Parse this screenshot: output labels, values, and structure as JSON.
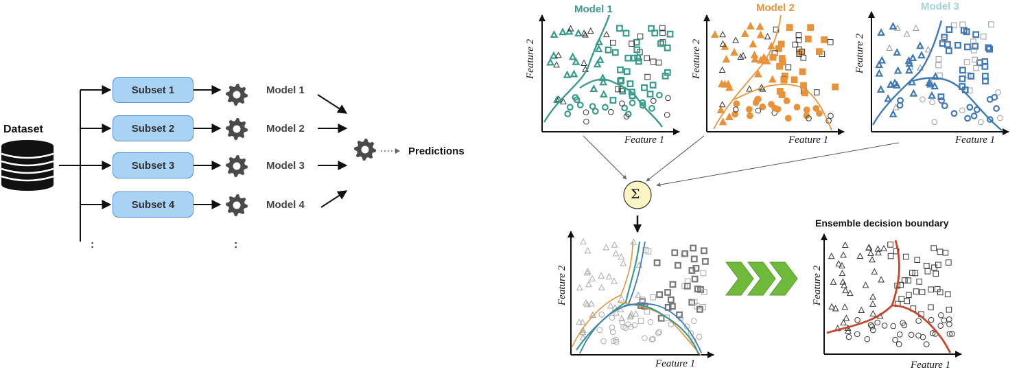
{
  "dataset": {
    "label": "Dataset",
    "icon": "database-icon"
  },
  "subsets": [
    "Subset 1",
    "Subset 2",
    "Subset 3",
    "Subset 4"
  ],
  "models": [
    "Model 1",
    "Model 2",
    "Model 3",
    "Model 4"
  ],
  "aggregator": {
    "icon": "gear-icon",
    "output_label": "Predictions"
  },
  "continuation": ":",
  "panels": {
    "axis_x": "Feature 1",
    "axis_y": "Feature 2",
    "model_titles": [
      "Model 1",
      "Model 2",
      "Model 3"
    ],
    "sum_symbol": "Σ",
    "ensemble_title": "Ensemble decision boundary"
  },
  "colors": {
    "subset_fill": "#a9d3f5",
    "subset_border": "#4f8fcf",
    "gear": "#4a4a4a",
    "model1": "#3a9a8c",
    "model2": "#e8923a",
    "model3": "#3f78b5",
    "model3_title": "#9fd4d8",
    "ensemble": "#c8452c",
    "sum_fill": "#fbf5c4",
    "chevron": "#6fba3a"
  }
}
